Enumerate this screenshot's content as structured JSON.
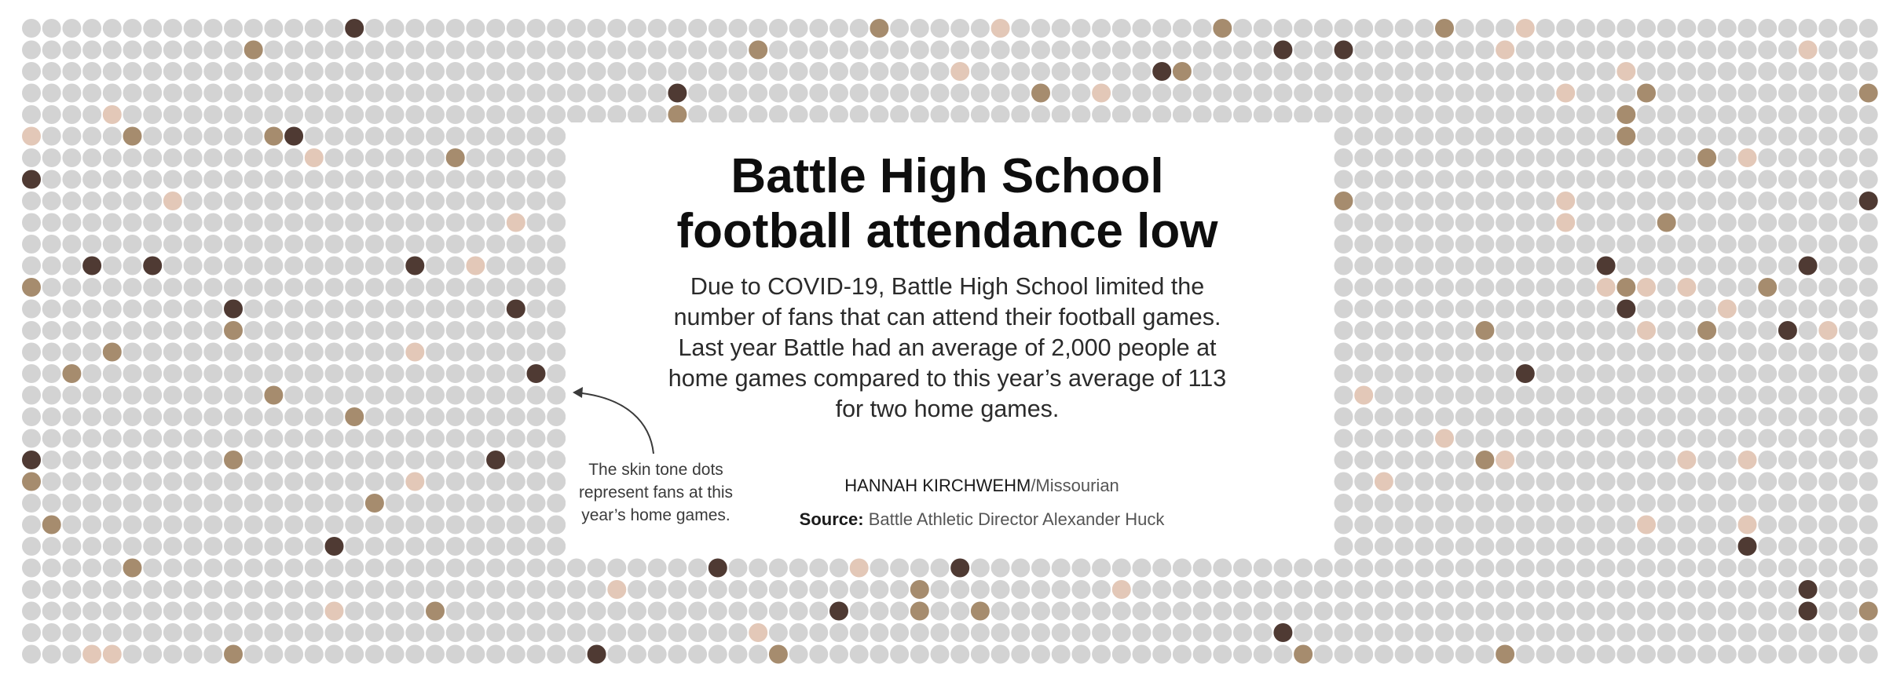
{
  "title": {
    "line1": "Battle High School",
    "line2": "football attendance low"
  },
  "description": "Due to COVID-19, Battle High School limited the number of fans that can attend their football games. Last year Battle had an average of 2,000 people at home games compared to this year’s average of 113 for two home games.",
  "annotation": "The skin tone dots represent fans at this year’s home games.",
  "byline": {
    "author": "HANNAH KIRCHWEHM",
    "outlet": "/Missourian"
  },
  "source": {
    "label": "Source:",
    "text": "Battle Athletic Director Alexander Huck"
  },
  "colors": {
    "background": "#ffffff",
    "empty_seat": "#d3d3d3",
    "skin_tones": [
      "#e3c8b8",
      "#a68c6e",
      "#4f3a33"
    ]
  },
  "chart_data": {
    "type": "unit-dot",
    "title": "Battle High School football attendance low",
    "series": [
      {
        "value": 2000
      },
      {
        "value": 113
      }
    ]
  }
}
